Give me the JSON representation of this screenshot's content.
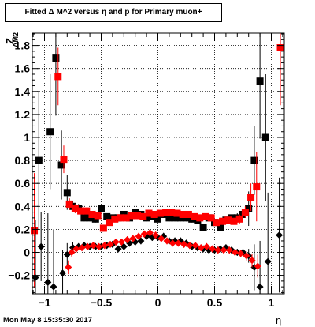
{
  "title": "Fitted Δ M^2 versus η and p for Primary muon+",
  "ytitle_main": "Z",
  "ytitle_sub": "ΔM2",
  "xtitle": "η",
  "timestamp": "Mon May  8 15:35:30 2017",
  "colors": {
    "series_black": "#000000",
    "series_red": "#ff0000",
    "grid": "#000000"
  },
  "chart_data": {
    "type": "scatter",
    "title": "Fitted Δ M^2 versus η and p for Primary muon+",
    "xlabel": "η",
    "ylabel": "Z ΔM2",
    "xlim": [
      -1.1,
      1.1
    ],
    "ylim": [
      -0.35,
      1.9
    ],
    "grid": true,
    "legend": "none",
    "x_ticks": [
      -1,
      -0.5,
      0,
      0.5,
      1
    ],
    "x_tick_labels": [
      "−1",
      "−0.5",
      "0",
      "0.5",
      "1"
    ],
    "y_ticks": [
      -0.2,
      0,
      0.2,
      0.4,
      0.6,
      0.8,
      1,
      1.2,
      1.4,
      1.6,
      1.8
    ],
    "y_tick_labels": [
      "−0.2",
      "0",
      "0.2",
      "0.4",
      "0.6",
      "0.8",
      "1",
      "1.2",
      "1.4",
      "1.6",
      "1.8"
    ],
    "series": [
      {
        "color": "#000000",
        "marker": "square",
        "x": [
          -1.05,
          -0.95,
          -0.9,
          -0.85,
          -0.8,
          -0.75,
          -0.7,
          -0.65,
          -0.6,
          -0.55,
          -0.5,
          -0.45,
          -0.4,
          -0.35,
          -0.3,
          -0.25,
          -0.2,
          -0.15,
          -0.1,
          -0.05,
          0,
          0.05,
          0.1,
          0.15,
          0.2,
          0.25,
          0.3,
          0.35,
          0.4,
          0.45,
          0.5,
          0.55,
          0.6,
          0.65,
          0.7,
          0.75,
          0.8,
          0.85,
          0.9,
          0.95
        ],
        "y": [
          0.8,
          1.05,
          1.69,
          0.76,
          0.52,
          0.4,
          0.38,
          0.3,
          0.3,
          0.29,
          0.38,
          0.31,
          0.3,
          0.3,
          0.33,
          0.3,
          0.35,
          0.33,
          0.3,
          0.31,
          0.29,
          0.33,
          0.3,
          0.3,
          0.3,
          0.3,
          0.29,
          0.28,
          0.22,
          0.3,
          0.26,
          0.22,
          0.28,
          0.3,
          0.3,
          0.33,
          0.38,
          0.8,
          1.49,
          1.0
        ],
        "err": [
          0.6,
          0.5,
          0.5,
          0.3,
          0.15,
          0.05,
          0.04,
          0.03,
          0.03,
          0.03,
          0.03,
          0.03,
          0.03,
          0.03,
          0.03,
          0.03,
          0.03,
          0.03,
          0.03,
          0.03,
          0.03,
          0.03,
          0.03,
          0.03,
          0.03,
          0.03,
          0.03,
          0.03,
          0.03,
          0.03,
          0.03,
          0.03,
          0.03,
          0.03,
          0.04,
          0.05,
          0.15,
          0.3,
          0.5,
          0.55
        ]
      },
      {
        "color": "#ff0000",
        "marker": "square",
        "x": [
          -1.09,
          -0.88,
          -0.83,
          -0.78,
          -0.73,
          -0.68,
          -0.63,
          -0.58,
          -0.53,
          -0.48,
          -0.43,
          -0.38,
          -0.33,
          -0.28,
          -0.23,
          -0.18,
          -0.13,
          -0.08,
          -0.03,
          0.02,
          0.07,
          0.12,
          0.17,
          0.22,
          0.27,
          0.32,
          0.37,
          0.42,
          0.47,
          0.52,
          0.57,
          0.62,
          0.67,
          0.72,
          0.77,
          0.82,
          0.87,
          1.08
        ],
        "y": [
          0.19,
          1.53,
          0.81,
          0.42,
          0.38,
          0.36,
          0.36,
          0.33,
          0.32,
          0.21,
          0.26,
          0.29,
          0.3,
          0.3,
          0.32,
          0.32,
          0.31,
          0.34,
          0.33,
          0.34,
          0.35,
          0.35,
          0.34,
          0.33,
          0.33,
          0.31,
          0.3,
          0.31,
          0.3,
          0.26,
          0.27,
          0.28,
          0.27,
          0.29,
          0.35,
          0.48,
          0.57,
          1.78
        ],
        "err": [
          0.5,
          0.25,
          0.12,
          0.05,
          0.04,
          0.03,
          0.03,
          0.03,
          0.03,
          0.03,
          0.03,
          0.03,
          0.03,
          0.03,
          0.03,
          0.03,
          0.03,
          0.03,
          0.03,
          0.03,
          0.03,
          0.03,
          0.03,
          0.03,
          0.03,
          0.03,
          0.03,
          0.03,
          0.03,
          0.03,
          0.03,
          0.03,
          0.03,
          0.04,
          0.05,
          0.12,
          0.3,
          0.5
        ]
      },
      {
        "color": "#000000",
        "marker": "diamond",
        "x": [
          -1.08,
          -1.03,
          -0.97,
          -0.92,
          -0.84,
          -0.8,
          -0.75,
          -0.7,
          -0.65,
          -0.6,
          -0.55,
          -0.5,
          -0.45,
          -0.4,
          -0.35,
          -0.3,
          -0.25,
          -0.2,
          -0.15,
          -0.1,
          -0.05,
          0,
          0.05,
          0.1,
          0.15,
          0.2,
          0.25,
          0.3,
          0.35,
          0.4,
          0.45,
          0.5,
          0.55,
          0.6,
          0.65,
          0.7,
          0.75,
          0.8,
          0.85,
          0.9,
          0.97,
          1.07
        ],
        "y": [
          -0.22,
          0.05,
          -0.26,
          -0.3,
          -0.18,
          -0.02,
          0.04,
          0.05,
          0.06,
          0.05,
          0.05,
          0.05,
          0.06,
          0.07,
          0.03,
          0.05,
          0.08,
          0.09,
          0.1,
          0.14,
          0.13,
          0.13,
          0.14,
          0.1,
          0.1,
          0.1,
          0.08,
          0.05,
          0.04,
          0.03,
          0.02,
          0.02,
          0.03,
          0.04,
          0.02,
          0.0,
          0.0,
          -0.03,
          -0.13,
          -0.3,
          -0.08,
          0.15
        ],
        "err": [
          0.5,
          0.3,
          0.6,
          0.5,
          0.2,
          0.1,
          0.05,
          0.03,
          0.03,
          0.03,
          0.03,
          0.03,
          0.03,
          0.03,
          0.03,
          0.03,
          0.03,
          0.03,
          0.03,
          0.03,
          0.03,
          0.03,
          0.03,
          0.03,
          0.03,
          0.03,
          0.03,
          0.03,
          0.03,
          0.03,
          0.03,
          0.03,
          0.03,
          0.03,
          0.03,
          0.03,
          0.04,
          0.06,
          0.2,
          0.4,
          0.6,
          0.5
        ]
      },
      {
        "color": "#ff0000",
        "marker": "diamond",
        "x": [
          -0.79,
          -0.76,
          -0.72,
          -0.67,
          -0.62,
          -0.57,
          -0.52,
          -0.47,
          -0.42,
          -0.37,
          -0.32,
          -0.27,
          -0.22,
          -0.17,
          -0.12,
          -0.07,
          -0.02,
          0.03,
          0.08,
          0.13,
          0.18,
          0.23,
          0.28,
          0.33,
          0.38,
          0.43,
          0.48,
          0.53,
          0.58,
          0.63,
          0.68,
          0.73,
          0.78,
          0.83,
          0.88
        ],
        "y": [
          -0.13,
          0.0,
          0.03,
          0.04,
          0.05,
          0.06,
          0.05,
          0.06,
          0.07,
          0.09,
          0.09,
          0.11,
          0.12,
          0.14,
          0.16,
          0.17,
          0.15,
          0.12,
          0.1,
          0.08,
          0.08,
          0.07,
          0.06,
          0.06,
          0.04,
          0.05,
          0.03,
          0.02,
          0.02,
          0.02,
          0.0,
          -0.01,
          -0.03,
          -0.07,
          -0.12
        ],
        "err": [
          0.06,
          0.04,
          0.03,
          0.03,
          0.03,
          0.03,
          0.03,
          0.03,
          0.03,
          0.03,
          0.03,
          0.03,
          0.03,
          0.03,
          0.03,
          0.03,
          0.03,
          0.03,
          0.03,
          0.03,
          0.03,
          0.03,
          0.03,
          0.03,
          0.03,
          0.03,
          0.03,
          0.03,
          0.03,
          0.03,
          0.03,
          0.03,
          0.04,
          0.06,
          0.1
        ]
      }
    ]
  }
}
